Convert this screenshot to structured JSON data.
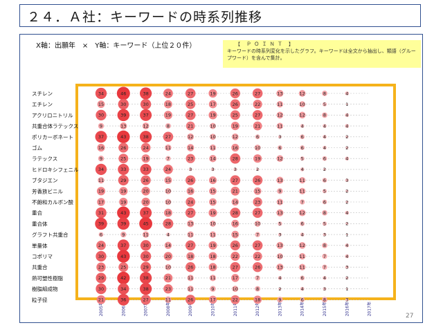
{
  "title": "２４．Ａ社：キーワードの時系列推移",
  "axis_description": "X軸：出願年　×　Y軸：キーワード（上位２０件）",
  "point_box": {
    "heading": "【　Ｐ Ｏ Ｉ Ｎ Ｔ　】",
    "body": "キーワードの時系列変化を示したグラフ。キーワードは全文から抽出し、類語（グループワード）を含んで集計。"
  },
  "page_number": "27",
  "colors": {
    "frame_border": "#f5b21b",
    "bubble_high": "#e8383d",
    "bubble_low": "#f6c3c6",
    "panel_border": "#2f4f8f",
    "point_bg": "#ffff9a"
  },
  "chart_data": {
    "type": "bubble_matrix",
    "x": [
      "2005年",
      "2006年",
      "2007年",
      "2008年",
      "2009年",
      "2010年",
      "2011年",
      "2012年",
      "2013年",
      "2014年",
      "2015年",
      "2016年",
      "2017年"
    ],
    "y": [
      "スチレン",
      "エチレン",
      "アクリロニトリル",
      "共重合体ラテックス",
      "ポリカーボネート",
      "ゴム",
      "ラテックス",
      "ヒドロキシフェニル",
      "ブタジエン",
      "芳香族ビニル",
      "不飽和カルボン酸",
      "重合",
      "重合体",
      "グラフト共重合",
      "単量体",
      "コポリマ",
      "共重合",
      "熱可塑性樹脂",
      "樹脂組成物",
      "粒子径"
    ],
    "values": [
      [
        34,
        46,
        38,
        24,
        27,
        19,
        26,
        27,
        13,
        12,
        8,
        4,
        null
      ],
      [
        15,
        30,
        30,
        18,
        25,
        17,
        26,
        22,
        11,
        10,
        5,
        1,
        null
      ],
      [
        30,
        39,
        37,
        19,
        27,
        19,
        25,
        27,
        12,
        12,
        8,
        4,
        null
      ],
      [
        9,
        13,
        12,
        8,
        21,
        10,
        19,
        21,
        11,
        4,
        4,
        4,
        null
      ],
      [
        37,
        43,
        38,
        27,
        12,
        10,
        12,
        6,
        3,
        6,
        4,
        2,
        null
      ],
      [
        16,
        26,
        24,
        11,
        14,
        11,
        16,
        10,
        6,
        6,
        4,
        2,
        null
      ],
      [
        9,
        25,
        19,
        7,
        23,
        14,
        28,
        19,
        12,
        5,
        6,
        4,
        null
      ],
      [
        34,
        33,
        33,
        24,
        3,
        3,
        3,
        2,
        null,
        4,
        2,
        null,
        null
      ],
      [
        11,
        29,
        26,
        15,
        26,
        16,
        27,
        26,
        13,
        11,
        6,
        3,
        null
      ],
      [
        19,
        19,
        20,
        10,
        16,
        15,
        21,
        15,
        9,
        11,
        5,
        2,
        null
      ],
      [
        17,
        19,
        20,
        10,
        24,
        15,
        14,
        23,
        11,
        7,
        6,
        2,
        null
      ],
      [
        31,
        43,
        37,
        18,
        27,
        19,
        28,
        27,
        13,
        12,
        8,
        4,
        null
      ],
      [
        39,
        39,
        45,
        28,
        13,
        10,
        16,
        10,
        5,
        6,
        5,
        2,
        null
      ],
      [
        6,
        9,
        11,
        4,
        11,
        11,
        15,
        7,
        3,
        4,
        3,
        1,
        null
      ],
      [
        24,
        37,
        30,
        14,
        27,
        19,
        26,
        27,
        13,
        12,
        8,
        4,
        null
      ],
      [
        30,
        43,
        30,
        20,
        18,
        18,
        22,
        22,
        10,
        11,
        7,
        4,
        null
      ],
      [
        23,
        25,
        29,
        10,
        26,
        18,
        27,
        26,
        13,
        11,
        7,
        3,
        null
      ],
      [
        29,
        42,
        38,
        21,
        11,
        11,
        17,
        7,
        4,
        6,
        4,
        2,
        null
      ],
      [
        30,
        34,
        38,
        23,
        11,
        9,
        10,
        8,
        2,
        4,
        3,
        1,
        null
      ],
      [
        21,
        36,
        27,
        11,
        26,
        17,
        22,
        18,
        9,
        6,
        8,
        3,
        null
      ]
    ],
    "max_value": 46
  }
}
